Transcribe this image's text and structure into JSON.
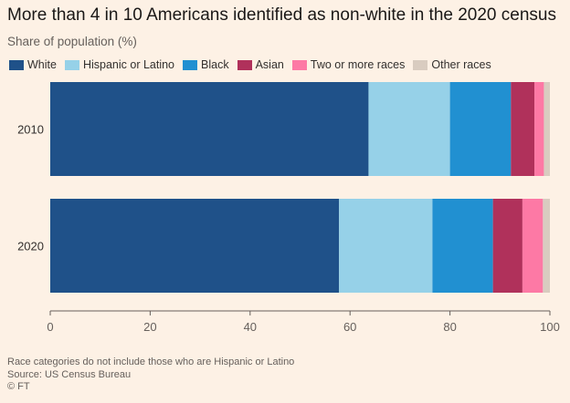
{
  "chart_data": {
    "type": "bar",
    "orientation": "horizontal",
    "stacked": true,
    "title": "More than 4 in 10 Americans identified as non-white in the 2020 census",
    "subtitle": "Share of population (%)",
    "categories": [
      "2010",
      "2020"
    ],
    "series": [
      {
        "name": "White",
        "color": "#1f5189",
        "values": [
          63.7,
          57.8
        ]
      },
      {
        "name": "Hispanic or Latino",
        "color": "#96d1e8",
        "values": [
          16.3,
          18.7
        ]
      },
      {
        "name": "Black",
        "color": "#2190d1",
        "values": [
          12.2,
          12.1
        ]
      },
      {
        "name": "Asian",
        "color": "#b0315b",
        "values": [
          4.7,
          5.9
        ]
      },
      {
        "name": "Two or more races",
        "color": "#fd79a5",
        "values": [
          1.9,
          4.1
        ]
      },
      {
        "name": "Other races",
        "color": "#d9ccc0",
        "values": [
          1.2,
          1.4
        ]
      }
    ],
    "xlim": [
      0,
      100
    ],
    "xticks": [
      "0",
      "20",
      "40",
      "60",
      "80",
      "100"
    ],
    "grid": false,
    "legend_position": "top"
  },
  "footer": {
    "note": "Race categories do not include those who are Hispanic or Latino",
    "source": "Source: US Census Bureau",
    "credit": "© FT"
  }
}
